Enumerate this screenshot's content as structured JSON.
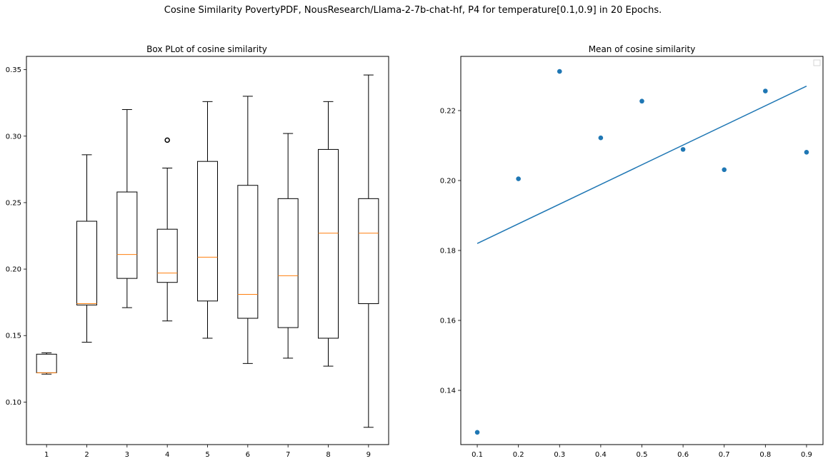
{
  "figure": {
    "title": "Cosine Similarity PovertyPDF, NousResearch/Llama-2-7b-chat-hf, P4 for temperature[0.1,0.9] in 20 Epochs."
  },
  "chart_data": [
    {
      "type": "box",
      "title": "Box PLot of cosine similarity",
      "xlabel": "",
      "ylabel": "",
      "categories": [
        "1",
        "2",
        "3",
        "4",
        "5",
        "6",
        "7",
        "8",
        "9"
      ],
      "boxes": [
        {
          "whislo": 0.121,
          "q1": 0.122,
          "med": 0.122,
          "q3": 0.136,
          "whishi": 0.137,
          "fliers": []
        },
        {
          "whislo": 0.145,
          "q1": 0.173,
          "med": 0.174,
          "q3": 0.236,
          "whishi": 0.286,
          "fliers": []
        },
        {
          "whislo": 0.171,
          "q1": 0.193,
          "med": 0.211,
          "q3": 0.258,
          "whishi": 0.32,
          "fliers": []
        },
        {
          "whislo": 0.161,
          "q1": 0.19,
          "med": 0.197,
          "q3": 0.23,
          "whishi": 0.276,
          "fliers": [
            0.297
          ]
        },
        {
          "whislo": 0.148,
          "q1": 0.176,
          "med": 0.209,
          "q3": 0.281,
          "whishi": 0.326,
          "fliers": []
        },
        {
          "whislo": 0.129,
          "q1": 0.163,
          "med": 0.181,
          "q3": 0.263,
          "whishi": 0.33,
          "fliers": []
        },
        {
          "whislo": 0.133,
          "q1": 0.156,
          "med": 0.195,
          "q3": 0.253,
          "whishi": 0.302,
          "fliers": []
        },
        {
          "whislo": 0.127,
          "q1": 0.148,
          "med": 0.227,
          "q3": 0.29,
          "whishi": 0.326,
          "fliers": []
        },
        {
          "whislo": 0.081,
          "q1": 0.174,
          "med": 0.227,
          "q3": 0.253,
          "whishi": 0.346,
          "fliers": []
        }
      ],
      "ylim": [
        0.068,
        0.36
      ],
      "yticks": [
        "0.10",
        "0.15",
        "0.20",
        "0.25",
        "0.30",
        "0.35"
      ],
      "grid": false,
      "colors": {
        "box": "#000000",
        "median": "#ff7f0e"
      }
    },
    {
      "type": "scatter",
      "title": "Mean of cosine similarity",
      "xlabel": "",
      "ylabel": "",
      "x": [
        0.1,
        0.2,
        0.3,
        0.4,
        0.5,
        0.6,
        0.7,
        0.8,
        0.9
      ],
      "y": [
        0.128,
        0.2005,
        0.2312,
        0.2122,
        0.2227,
        0.2089,
        0.2031,
        0.2256,
        0.2081
      ],
      "trendline": {
        "x": [
          0.1,
          0.9
        ],
        "y": [
          0.182,
          0.227
        ]
      },
      "xlim": [
        0.06,
        0.94
      ],
      "ylim": [
        0.1245,
        0.2355
      ],
      "xticks": [
        "0.1",
        "0.2",
        "0.3",
        "0.4",
        "0.5",
        "0.6",
        "0.7",
        "0.8",
        "0.9"
      ],
      "yticks": [
        "0.14",
        "0.16",
        "0.18",
        "0.20",
        "0.22"
      ],
      "legend": "top-right",
      "grid": false,
      "colors": {
        "points": "#1f77b4",
        "line": "#1f77b4"
      }
    }
  ]
}
